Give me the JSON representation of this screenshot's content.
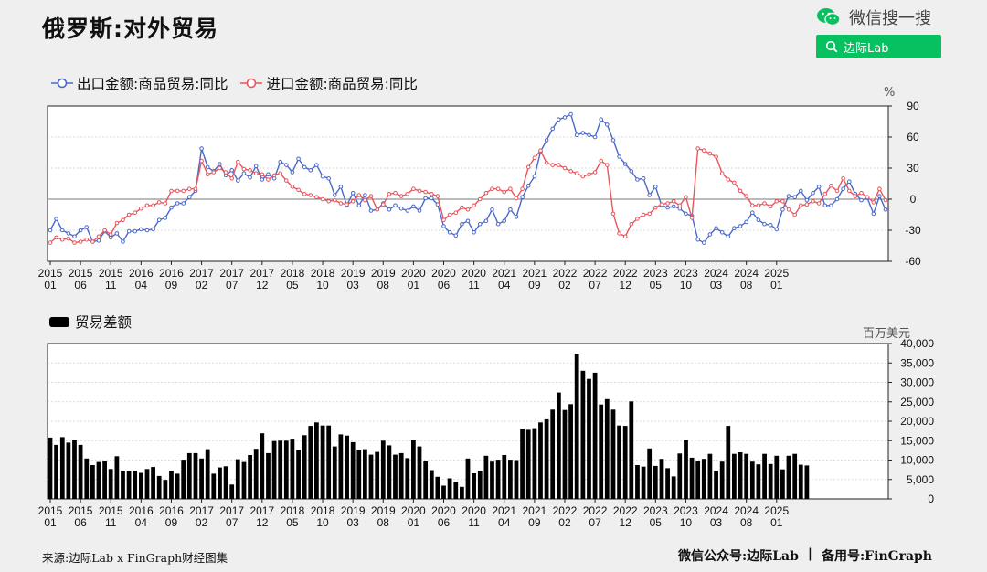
{
  "title": "俄罗斯:对外贸易",
  "brand": {
    "wechat_search": "微信搜一搜",
    "search_label": "边际Lab"
  },
  "colors": {
    "export": "#4a68c9",
    "import": "#e8555c",
    "bar": "#000000",
    "brand_green": "#07c160"
  },
  "footer": {
    "source": "来源:边际Lab x FinGraph财经图集",
    "account": "微信公众号:边际Lab",
    "sep": "|",
    "backup": "备用号:FinGraph"
  },
  "chart_data": [
    {
      "type": "line",
      "legend_position": "top-left",
      "grid": true,
      "unit": "%",
      "ylim": [
        -60,
        90
      ],
      "y_ticks": [
        "90",
        "60",
        "30",
        "0",
        "-30",
        "-60"
      ],
      "x_tick_labels": [
        [
          "2015",
          "01"
        ],
        [
          "2015",
          "06"
        ],
        [
          "2015",
          "11"
        ],
        [
          "2016",
          "04"
        ],
        [
          "2016",
          "09"
        ],
        [
          "2017",
          "02"
        ],
        [
          "2017",
          "07"
        ],
        [
          "2017",
          "12"
        ],
        [
          "2018",
          "05"
        ],
        [
          "2018",
          "10"
        ],
        [
          "2019",
          "03"
        ],
        [
          "2019",
          "08"
        ],
        [
          "2020",
          "01"
        ],
        [
          "2020",
          "06"
        ],
        [
          "2020",
          "11"
        ],
        [
          "2021",
          "04"
        ],
        [
          "2021",
          "09"
        ],
        [
          "2022",
          "02"
        ],
        [
          "2022",
          "07"
        ],
        [
          "2022",
          "12"
        ],
        [
          "2023",
          "05"
        ],
        [
          "2023",
          "10"
        ],
        [
          "2024",
          "03"
        ],
        [
          "2024",
          "08"
        ],
        [
          "2025",
          "01"
        ]
      ],
      "x_start": "2015-01",
      "series": [
        {
          "name": "出口金额:商品贸易:同比",
          "values": [
            -30,
            -19,
            -30,
            -33,
            -36,
            -30,
            -27,
            -41,
            -40,
            -31,
            -37,
            -33,
            -41,
            -31,
            -31,
            -29,
            -30,
            -29,
            -20,
            -18,
            -8,
            -4,
            -4,
            2,
            8,
            49,
            31,
            27,
            34,
            23,
            28,
            18,
            25,
            21,
            32,
            19,
            24,
            20,
            36,
            33,
            26,
            39,
            31,
            28,
            33,
            22,
            20,
            4,
            12,
            -6,
            6,
            -6,
            4,
            -11,
            -10,
            -4,
            -10,
            -6,
            -9,
            -11,
            -7,
            -11,
            1,
            1,
            -5,
            -26,
            -32,
            -35,
            -24,
            -21,
            -32,
            -24,
            -21,
            -10,
            -24,
            -21,
            -10,
            -17,
            2,
            13,
            22,
            46,
            57,
            68,
            77,
            79,
            82,
            62,
            64,
            62,
            60,
            77,
            72,
            57,
            41,
            34,
            27,
            19,
            20,
            4,
            12,
            -6,
            -8,
            -7,
            -9,
            -14,
            -16,
            -39,
            -42,
            -34,
            -28,
            -32,
            -36,
            -28,
            -26,
            -22,
            -13,
            -20,
            -24,
            -25,
            -29,
            -10,
            3,
            2,
            8,
            -1,
            6,
            12,
            -6,
            -6,
            0,
            10,
            17,
            5,
            -1,
            1,
            -14,
            3,
            -10
          ]
        },
        {
          "name": "进口金额:商品贸易:同比",
          "values": [
            -42,
            -37,
            -39,
            -38,
            -42,
            -41,
            -39,
            -41,
            -36,
            -30,
            -34,
            -23,
            -20,
            -15,
            -13,
            -9,
            -6,
            -6,
            -3,
            -4,
            8,
            8,
            8,
            10,
            10,
            37,
            24,
            26,
            30,
            26,
            20,
            36,
            29,
            28,
            25,
            24,
            19,
            23,
            25,
            18,
            12,
            9,
            5,
            4,
            2,
            0,
            -2,
            -1,
            -4,
            -5,
            -2,
            4,
            -1,
            3,
            -10,
            -5,
            5,
            6,
            3,
            5,
            10,
            8,
            7,
            5,
            3,
            -20,
            -15,
            -13,
            -8,
            -10,
            -6,
            0,
            6,
            10,
            10,
            7,
            10,
            1,
            10,
            31,
            40,
            47,
            35,
            33,
            33,
            30,
            27,
            25,
            22,
            24,
            26,
            37,
            33,
            -14,
            -33,
            -36,
            -24,
            -19,
            -15,
            -14,
            -8,
            -5,
            -4,
            -2,
            -6,
            2,
            -18,
            49,
            47,
            44,
            41,
            25,
            19,
            16,
            8,
            3,
            -6,
            -6,
            -4,
            -7,
            -2,
            -2,
            -10,
            -15,
            -6,
            -5,
            -2,
            -4,
            5,
            13,
            8,
            20,
            8,
            3,
            6,
            2,
            -3,
            10,
            -1
          ]
        }
      ]
    },
    {
      "type": "bar",
      "legend_position": "top-left",
      "grid": true,
      "unit": "百万美元",
      "ylim": [
        0,
        40000
      ],
      "y_ticks": [
        "40,000",
        "35,000",
        "30,000",
        "25,000",
        "20,000",
        "15,000",
        "10,000",
        "5,000",
        "0"
      ],
      "x_start": "2015-01",
      "series": [
        {
          "name": "贸易差额",
          "values": [
            15800,
            13900,
            15900,
            14500,
            15300,
            13900,
            10400,
            8700,
            9500,
            9700,
            7700,
            11000,
            7200,
            7200,
            7300,
            6700,
            7700,
            8200,
            5900,
            4900,
            7300,
            6500,
            10100,
            11800,
            11800,
            10400,
            12800,
            6500,
            8100,
            8400,
            3700,
            10200,
            9500,
            11300,
            12900,
            16900,
            11800,
            14900,
            15000,
            15000,
            15500,
            12600,
            16400,
            18800,
            19700,
            18900,
            18900,
            13500,
            16600,
            16300,
            14600,
            12500,
            12800,
            11400,
            12100,
            15000,
            13800,
            11400,
            11800,
            10500,
            15300,
            13500,
            9700,
            7400,
            5700,
            3400,
            5300,
            4400,
            3100,
            10400,
            6600,
            7300,
            11100,
            9600,
            10100,
            11300,
            10100,
            10000,
            18000,
            17800,
            18200,
            19700,
            20500,
            23000,
            27400,
            22900,
            24400,
            37400,
            33000,
            30900,
            32500,
            24300,
            25700,
            23000,
            18900,
            18800,
            25100,
            8700,
            8300,
            13000,
            8500,
            10300,
            7900,
            5800,
            11700,
            15200,
            10600,
            9800,
            10300,
            11600,
            7200,
            9600,
            18800,
            11600,
            12000,
            11600,
            9600,
            8900,
            11600,
            9000,
            11100,
            7600,
            11100,
            11600,
            8800,
            8600
          ]
        }
      ]
    }
  ]
}
